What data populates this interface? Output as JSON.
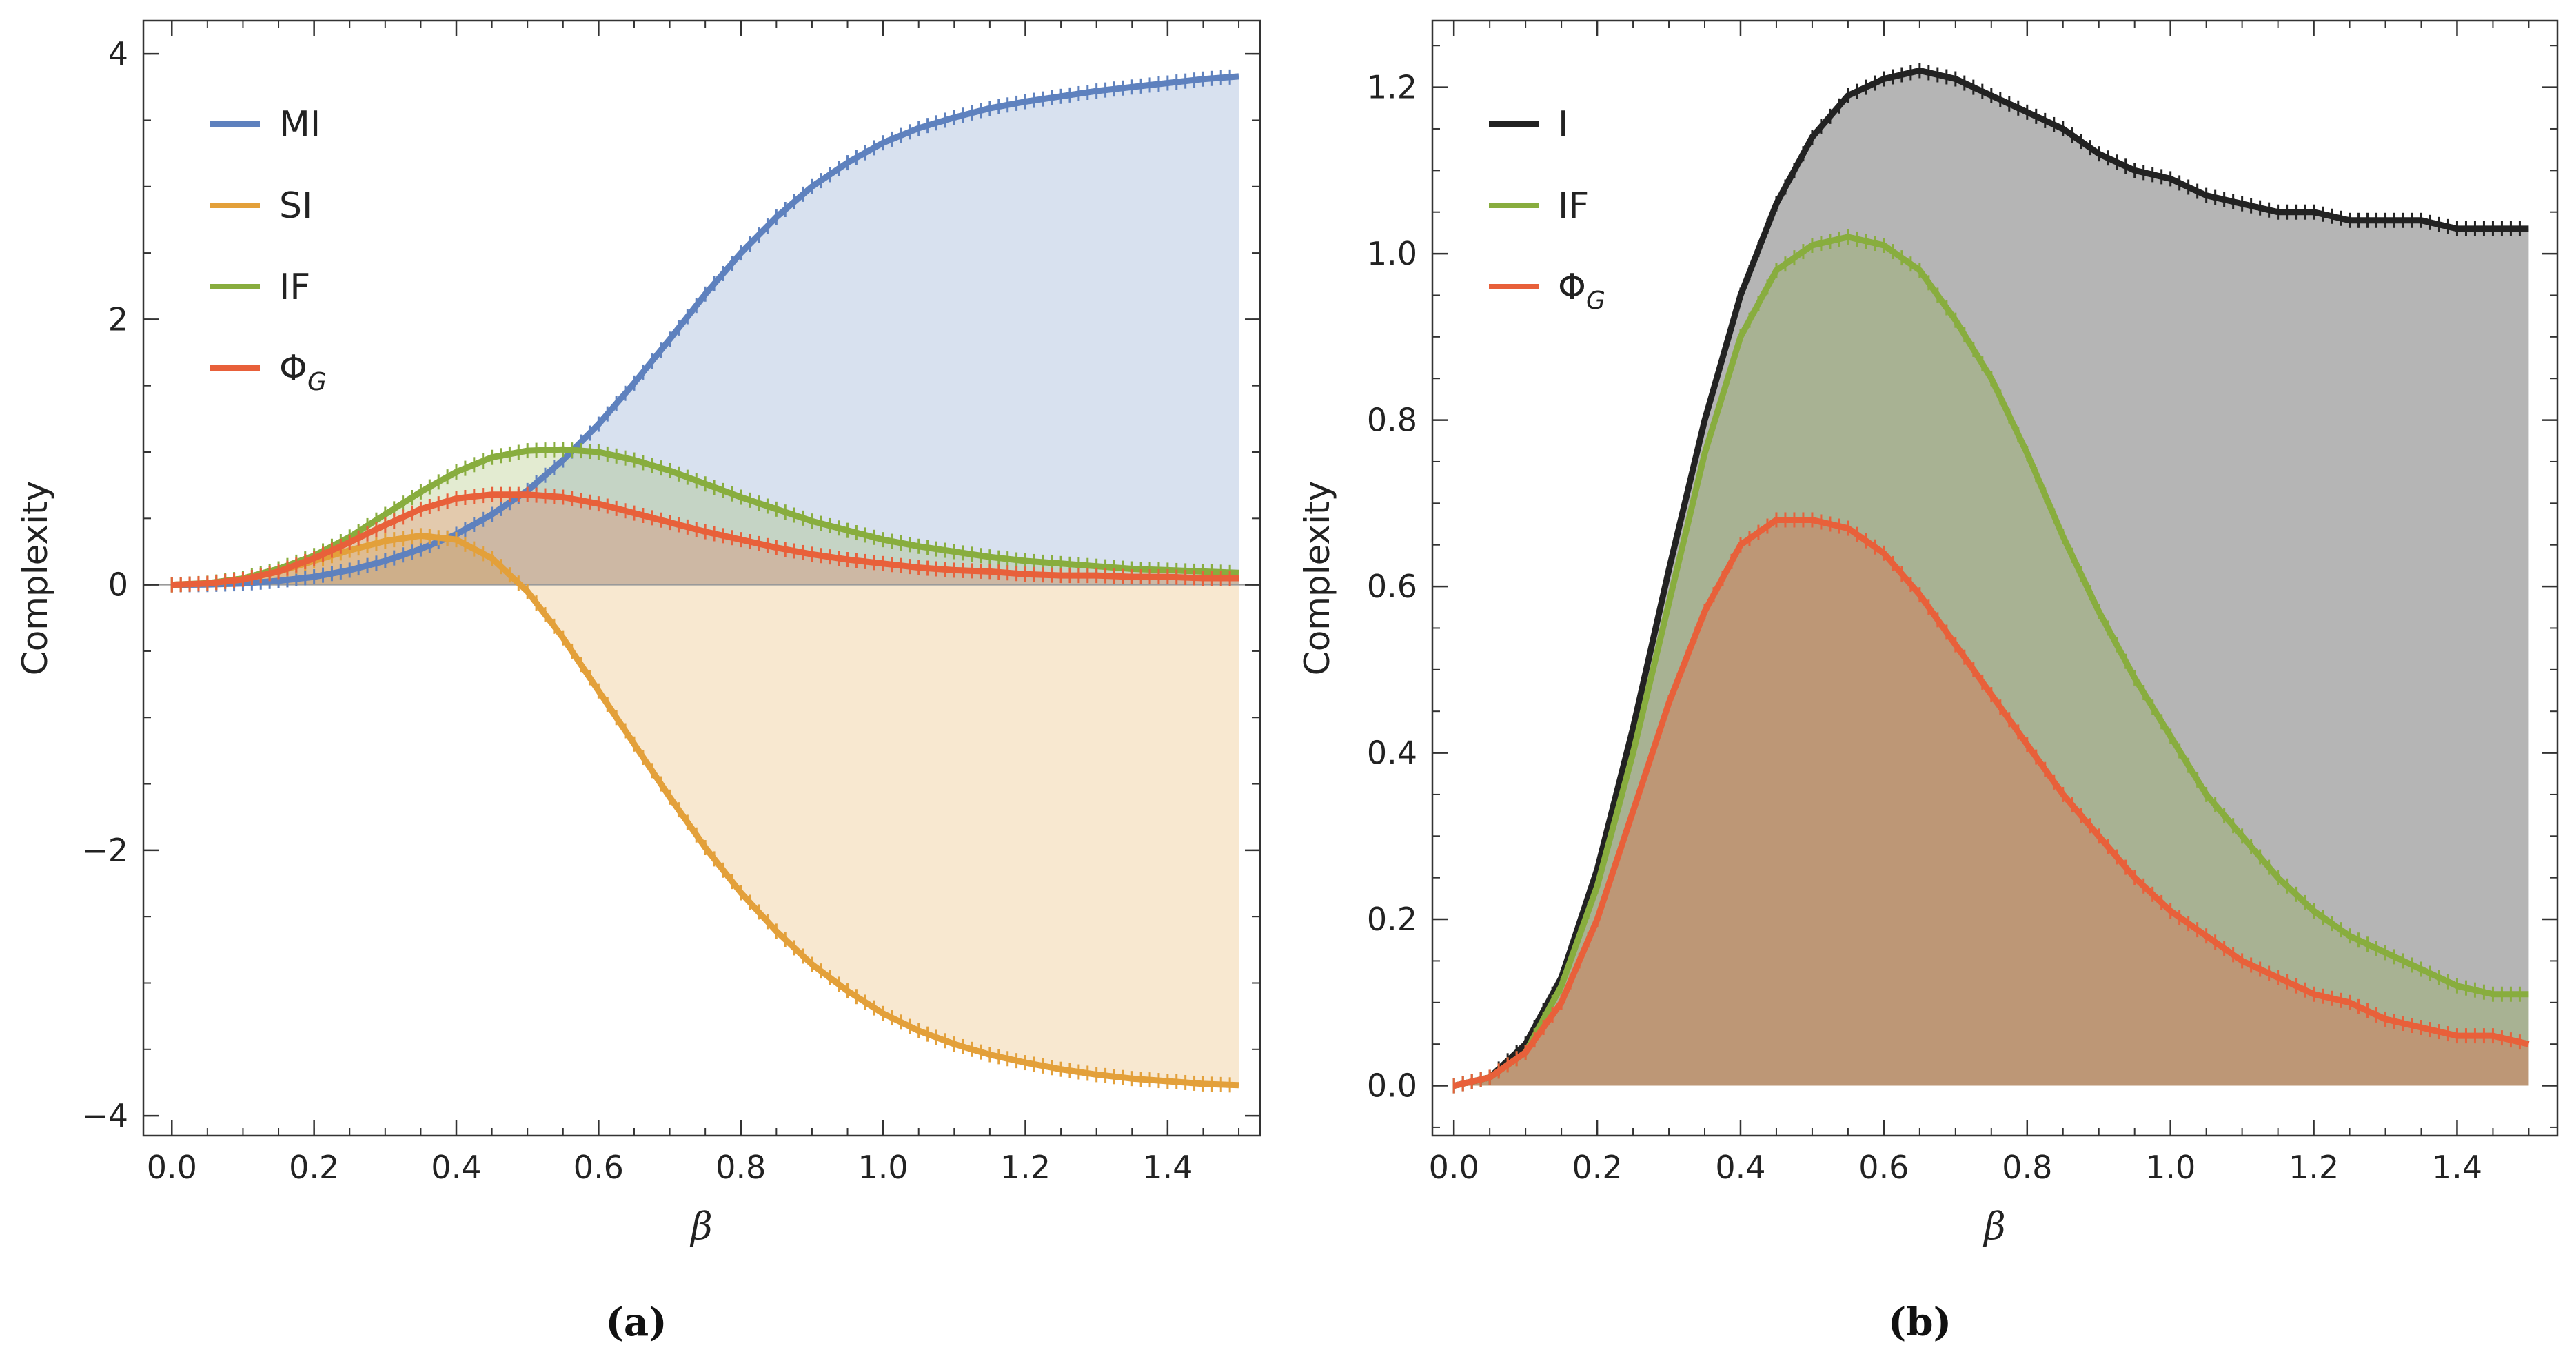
{
  "chart_data": [
    {
      "type": "area",
      "id": "a",
      "caption": "(a)",
      "xlabel": "β",
      "ylabel": "Complexity",
      "xlim": [
        -0.04,
        1.53
      ],
      "ylim": [
        -4.15,
        4.25
      ],
      "xticks": [
        "0.0",
        "0.2",
        "0.4",
        "0.6",
        "0.8",
        "1.0",
        "1.2",
        "1.4"
      ],
      "yticks": [
        "−4",
        "−2",
        "0",
        "2",
        "4"
      ],
      "ytick_values": [
        -4,
        -2,
        0,
        2,
        4
      ],
      "legend_position": "top-left",
      "x": [
        0,
        0.05,
        0.1,
        0.15,
        0.2,
        0.25,
        0.3,
        0.35,
        0.4,
        0.45,
        0.5,
        0.55,
        0.6,
        0.65,
        0.7,
        0.75,
        0.8,
        0.85,
        0.9,
        0.95,
        1.0,
        1.05,
        1.1,
        1.15,
        1.2,
        1.25,
        1.3,
        1.35,
        1.4,
        1.45,
        1.5
      ],
      "series": [
        {
          "name": "MI",
          "sub": "",
          "color": "#5e81be",
          "fill": "rgba(94,129,190,0.24)",
          "values": [
            0,
            0.002,
            0.01,
            0.03,
            0.06,
            0.11,
            0.18,
            0.27,
            0.38,
            0.53,
            0.71,
            0.94,
            1.21,
            1.52,
            1.85,
            2.19,
            2.5,
            2.77,
            3.0,
            3.18,
            3.33,
            3.44,
            3.52,
            3.59,
            3.64,
            3.68,
            3.72,
            3.75,
            3.78,
            3.81,
            3.83
          ]
        },
        {
          "name": "SI",
          "sub": "",
          "color": "#e3a03a",
          "fill": "rgba(227,160,58,0.24)",
          "values": [
            0,
            0.01,
            0.04,
            0.1,
            0.18,
            0.26,
            0.33,
            0.37,
            0.34,
            0.2,
            -0.05,
            -0.4,
            -0.8,
            -1.2,
            -1.6,
            -1.98,
            -2.32,
            -2.61,
            -2.86,
            -3.06,
            -3.23,
            -3.36,
            -3.46,
            -3.54,
            -3.6,
            -3.65,
            -3.69,
            -3.72,
            -3.74,
            -3.76,
            -3.77
          ]
        },
        {
          "name": "IF",
          "sub": "",
          "color": "#88ad3e",
          "fill": "rgba(136,173,62,0.24)",
          "values": [
            0,
            0.012,
            0.048,
            0.12,
            0.22,
            0.36,
            0.53,
            0.7,
            0.85,
            0.96,
            1.01,
            1.02,
            1.0,
            0.94,
            0.86,
            0.76,
            0.66,
            0.57,
            0.48,
            0.41,
            0.34,
            0.29,
            0.25,
            0.21,
            0.18,
            0.16,
            0.14,
            0.12,
            0.11,
            0.1,
            0.09
          ]
        },
        {
          "name": "Φ",
          "sub": "G",
          "color": "#e8603a",
          "fill": "rgba(232,96,58,0.24)",
          "values": [
            0,
            0.01,
            0.04,
            0.1,
            0.2,
            0.32,
            0.45,
            0.57,
            0.65,
            0.68,
            0.68,
            0.66,
            0.61,
            0.54,
            0.47,
            0.4,
            0.34,
            0.28,
            0.23,
            0.19,
            0.16,
            0.13,
            0.11,
            0.1,
            0.08,
            0.07,
            0.07,
            0.06,
            0.06,
            0.05,
            0.05
          ]
        }
      ]
    },
    {
      "type": "area",
      "id": "b",
      "caption": "(b)",
      "xlabel": "β",
      "ylabel": "Complexity",
      "xlim": [
        -0.03,
        1.54
      ],
      "ylim": [
        -0.06,
        1.28
      ],
      "xticks": [
        "0.0",
        "0.2",
        "0.4",
        "0.6",
        "0.8",
        "1.0",
        "1.2",
        "1.4"
      ],
      "yticks": [
        "0.0",
        "0.2",
        "0.4",
        "0.6",
        "0.8",
        "1.0",
        "1.2"
      ],
      "ytick_values": [
        0,
        0.2,
        0.4,
        0.6,
        0.8,
        1.0,
        1.2
      ],
      "legend_position": "top-left",
      "x": [
        0,
        0.05,
        0.1,
        0.15,
        0.2,
        0.25,
        0.3,
        0.35,
        0.4,
        0.45,
        0.5,
        0.55,
        0.6,
        0.65,
        0.7,
        0.75,
        0.8,
        0.85,
        0.9,
        0.95,
        1.0,
        1.05,
        1.1,
        1.15,
        1.2,
        1.25,
        1.3,
        1.35,
        1.4,
        1.45,
        1.5
      ],
      "series": [
        {
          "name": "I",
          "sub": "",
          "color": "#222222",
          "fill": "rgba(120,120,120,0.55)",
          "values": [
            0,
            0.01,
            0.05,
            0.13,
            0.26,
            0.43,
            0.62,
            0.8,
            0.95,
            1.06,
            1.14,
            1.19,
            1.21,
            1.22,
            1.21,
            1.19,
            1.17,
            1.15,
            1.12,
            1.1,
            1.09,
            1.07,
            1.06,
            1.05,
            1.05,
            1.04,
            1.04,
            1.04,
            1.03,
            1.03,
            1.03
          ]
        },
        {
          "name": "IF",
          "sub": "",
          "color": "#88ad3e",
          "fill": "rgba(136,173,62,0.28)",
          "values": [
            0,
            0.01,
            0.04,
            0.12,
            0.24,
            0.4,
            0.58,
            0.76,
            0.9,
            0.98,
            1.01,
            1.02,
            1.01,
            0.98,
            0.92,
            0.85,
            0.76,
            0.66,
            0.57,
            0.49,
            0.42,
            0.35,
            0.3,
            0.25,
            0.21,
            0.18,
            0.16,
            0.14,
            0.12,
            0.11,
            0.11
          ]
        },
        {
          "name": "Φ",
          "sub": "G",
          "color": "#e8603a",
          "fill": "rgba(232,96,58,0.32)",
          "values": [
            0,
            0.01,
            0.04,
            0.1,
            0.2,
            0.33,
            0.46,
            0.57,
            0.65,
            0.68,
            0.68,
            0.67,
            0.64,
            0.59,
            0.53,
            0.47,
            0.41,
            0.35,
            0.3,
            0.25,
            0.21,
            0.18,
            0.15,
            0.13,
            0.11,
            0.1,
            0.08,
            0.07,
            0.06,
            0.06,
            0.05
          ]
        }
      ]
    }
  ]
}
